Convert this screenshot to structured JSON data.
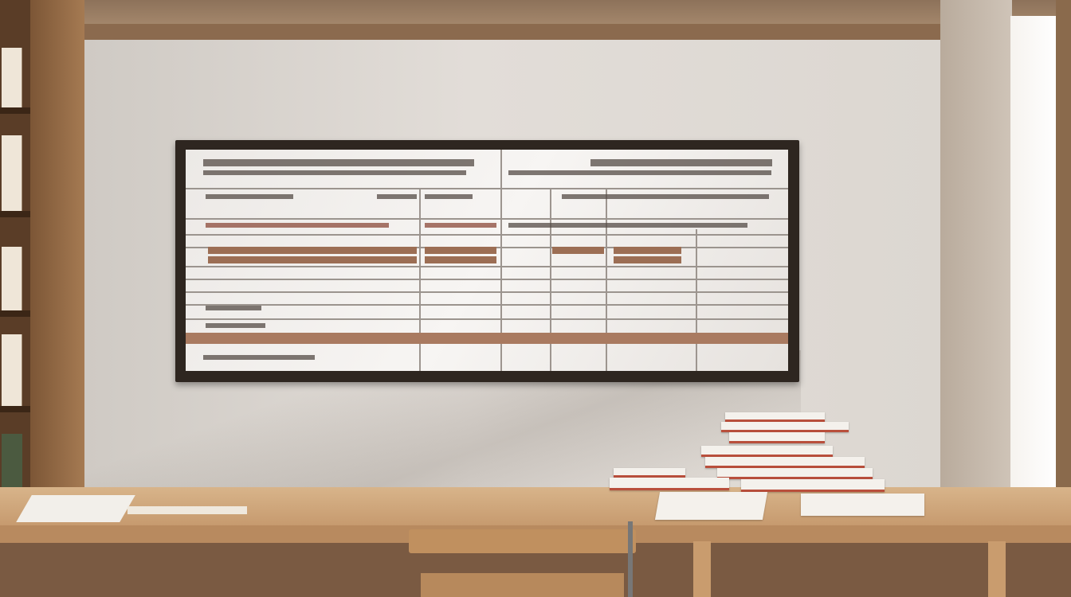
{
  "scene": {
    "description_colors": {
      "wall": "#e2ddd8",
      "wood": "#c29468",
      "frame": "#2e2620",
      "poster_accent": "#9c6e54",
      "book_accent": "#b94f3c"
    },
    "poster": {
      "text_legible": false,
      "header_rows": 3,
      "highlighted_rows": 2
    }
  }
}
